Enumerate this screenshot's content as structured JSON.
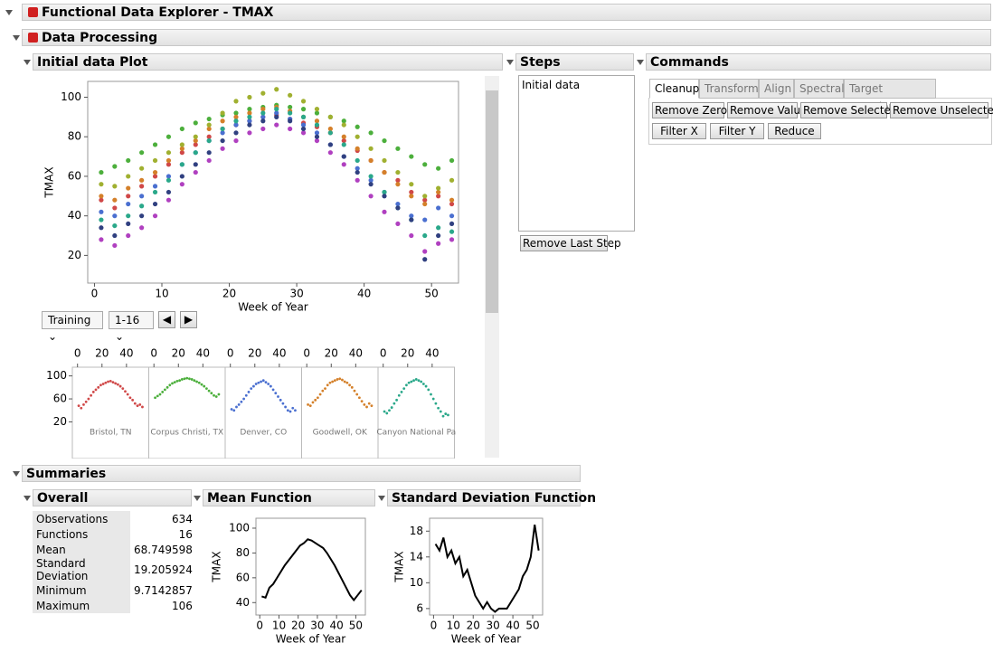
{
  "header": {
    "title": "Functional Data Explorer - TMAX"
  },
  "data_processing": {
    "title": "Data Processing"
  },
  "initial_plot": {
    "title": "Initial data Plot",
    "type": "scatter",
    "x_label": "Week of Year",
    "y_label": "TMAX",
    "xlim": [
      -1,
      54
    ],
    "ylim": [
      6,
      108
    ],
    "xticks": [
      0,
      10,
      20,
      30,
      40,
      50
    ],
    "yticks": [
      20,
      40,
      60,
      80,
      100
    ],
    "x": [
      1,
      3,
      5,
      7,
      9,
      11,
      13,
      15,
      17,
      19,
      21,
      23,
      25,
      27,
      29,
      31,
      33,
      35,
      37,
      39,
      41,
      43,
      45,
      47,
      49,
      51,
      53
    ],
    "series": [
      {
        "name": "Bristol, TN",
        "color": "#d04848",
        "values": [
          48,
          44,
          50,
          55,
          60,
          66,
          72,
          76,
          80,
          84,
          86,
          88,
          90,
          91,
          89,
          87,
          85,
          82,
          78,
          73,
          68,
          62,
          58,
          52,
          48,
          50,
          46
        ]
      },
      {
        "name": "Corpus Christi, TX",
        "color": "#4caf3c",
        "values": [
          62,
          65,
          68,
          72,
          76,
          80,
          84,
          87,
          89,
          91,
          92,
          94,
          95,
          96,
          95,
          94,
          92,
          90,
          88,
          85,
          82,
          78,
          74,
          70,
          66,
          64,
          68
        ]
      },
      {
        "name": "Denver, CO",
        "color": "#4a6fd0",
        "values": [
          42,
          40,
          46,
          50,
          55,
          60,
          66,
          72,
          78,
          82,
          86,
          88,
          90,
          92,
          89,
          86,
          82,
          76,
          70,
          64,
          58,
          52,
          46,
          40,
          38,
          44,
          40
        ]
      },
      {
        "name": "Goodwell, OK",
        "color": "#d4802a",
        "values": [
          50,
          48,
          54,
          58,
          62,
          68,
          74,
          78,
          84,
          88,
          90,
          92,
          94,
          95,
          93,
          90,
          88,
          84,
          80,
          74,
          68,
          62,
          56,
          50,
          46,
          52,
          48
        ]
      },
      {
        "name": "Canyon National Pa",
        "color": "#2aa88a",
        "values": [
          38,
          35,
          40,
          45,
          52,
          58,
          66,
          72,
          78,
          84,
          88,
          90,
          92,
          94,
          92,
          90,
          86,
          82,
          76,
          68,
          60,
          52,
          44,
          38,
          30,
          34,
          32
        ]
      },
      {
        "color": "#b040c0",
        "values": [
          28,
          25,
          30,
          34,
          40,
          48,
          56,
          62,
          68,
          74,
          78,
          82,
          84,
          86,
          84,
          82,
          78,
          72,
          66,
          58,
          50,
          42,
          36,
          30,
          22,
          26,
          28
        ]
      },
      {
        "color": "#a0b030",
        "values": [
          56,
          55,
          60,
          64,
          68,
          72,
          76,
          80,
          86,
          92,
          98,
          100,
          102,
          104,
          101,
          98,
          94,
          90,
          86,
          80,
          74,
          68,
          62,
          56,
          50,
          54,
          58
        ]
      },
      {
        "color": "#304080",
        "values": [
          34,
          30,
          36,
          40,
          46,
          52,
          60,
          66,
          72,
          78,
          82,
          86,
          88,
          90,
          88,
          84,
          80,
          76,
          70,
          62,
          56,
          50,
          44,
          38,
          18,
          30,
          36
        ]
      }
    ]
  },
  "controls": {
    "set": "Training",
    "range": "1-16"
  },
  "panels": {
    "xlim": [
      -2,
      56
    ],
    "ylim": [
      5,
      112
    ],
    "xticks": [
      0,
      20,
      40
    ],
    "yticks": [
      20,
      60,
      100
    ]
  },
  "steps": {
    "title": "Steps",
    "items": [
      "Initial data"
    ],
    "button": "Remove Last Step"
  },
  "commands": {
    "title": "Commands",
    "tabs": [
      "Cleanup",
      "Transform",
      "Align",
      "Spectral",
      "Target Functions"
    ],
    "buttons": [
      "Remove Zeros",
      "Remove Value",
      "Remove Selected",
      "Remove Unselected",
      "Filter X",
      "Filter Y",
      "Reduce"
    ]
  },
  "summaries": {
    "title": "Summaries",
    "overall": {
      "title": "Overall",
      "rows": [
        [
          "Observations",
          634
        ],
        [
          "Functions",
          16
        ],
        [
          "Mean",
          68.749598
        ],
        [
          "Standard Deviation",
          19.205924
        ],
        [
          "Minimum",
          9.7142857
        ],
        [
          "Maximum",
          106
        ]
      ]
    }
  },
  "mean_function": {
    "title": "Mean Function",
    "type": "line",
    "x_label": "Week of Year",
    "y_label": "TMAX",
    "color": "#000000",
    "xlim": [
      -2,
      55
    ],
    "ylim": [
      30,
      108
    ],
    "xticks": [
      0,
      10,
      20,
      30,
      40,
      50
    ],
    "yticks": [
      40,
      60,
      80,
      100
    ],
    "x": [
      1,
      3,
      5,
      7,
      9,
      11,
      13,
      15,
      17,
      19,
      21,
      23,
      25,
      27,
      29,
      31,
      33,
      35,
      37,
      39,
      41,
      43,
      45,
      47,
      49,
      51,
      53
    ],
    "values": [
      45,
      44,
      52,
      55,
      60,
      65,
      70,
      74,
      78,
      82,
      86,
      88,
      91,
      90,
      88,
      86,
      84,
      80,
      75,
      70,
      64,
      58,
      52,
      46,
      42,
      46,
      50
    ]
  },
  "sd_function": {
    "title": "Standard Deviation Function",
    "type": "line",
    "x_label": "Week of Year",
    "y_label": "TMAX",
    "color": "#000000",
    "xlim": [
      -2,
      55
    ],
    "ylim": [
      5,
      20
    ],
    "xticks": [
      0,
      10,
      20,
      30,
      40,
      50
    ],
    "yticks": [
      6,
      10,
      14,
      18
    ],
    "x": [
      1,
      3,
      5,
      7,
      9,
      11,
      13,
      15,
      17,
      19,
      21,
      23,
      25,
      27,
      29,
      31,
      33,
      35,
      37,
      39,
      41,
      43,
      45,
      47,
      49,
      51,
      53
    ],
    "values": [
      16,
      15,
      17,
      14,
      15,
      13,
      14,
      11,
      12,
      10,
      8,
      7,
      6,
      7,
      6,
      5.5,
      6,
      6,
      6,
      7,
      8,
      9,
      11,
      12,
      14,
      19,
      15
    ]
  }
}
